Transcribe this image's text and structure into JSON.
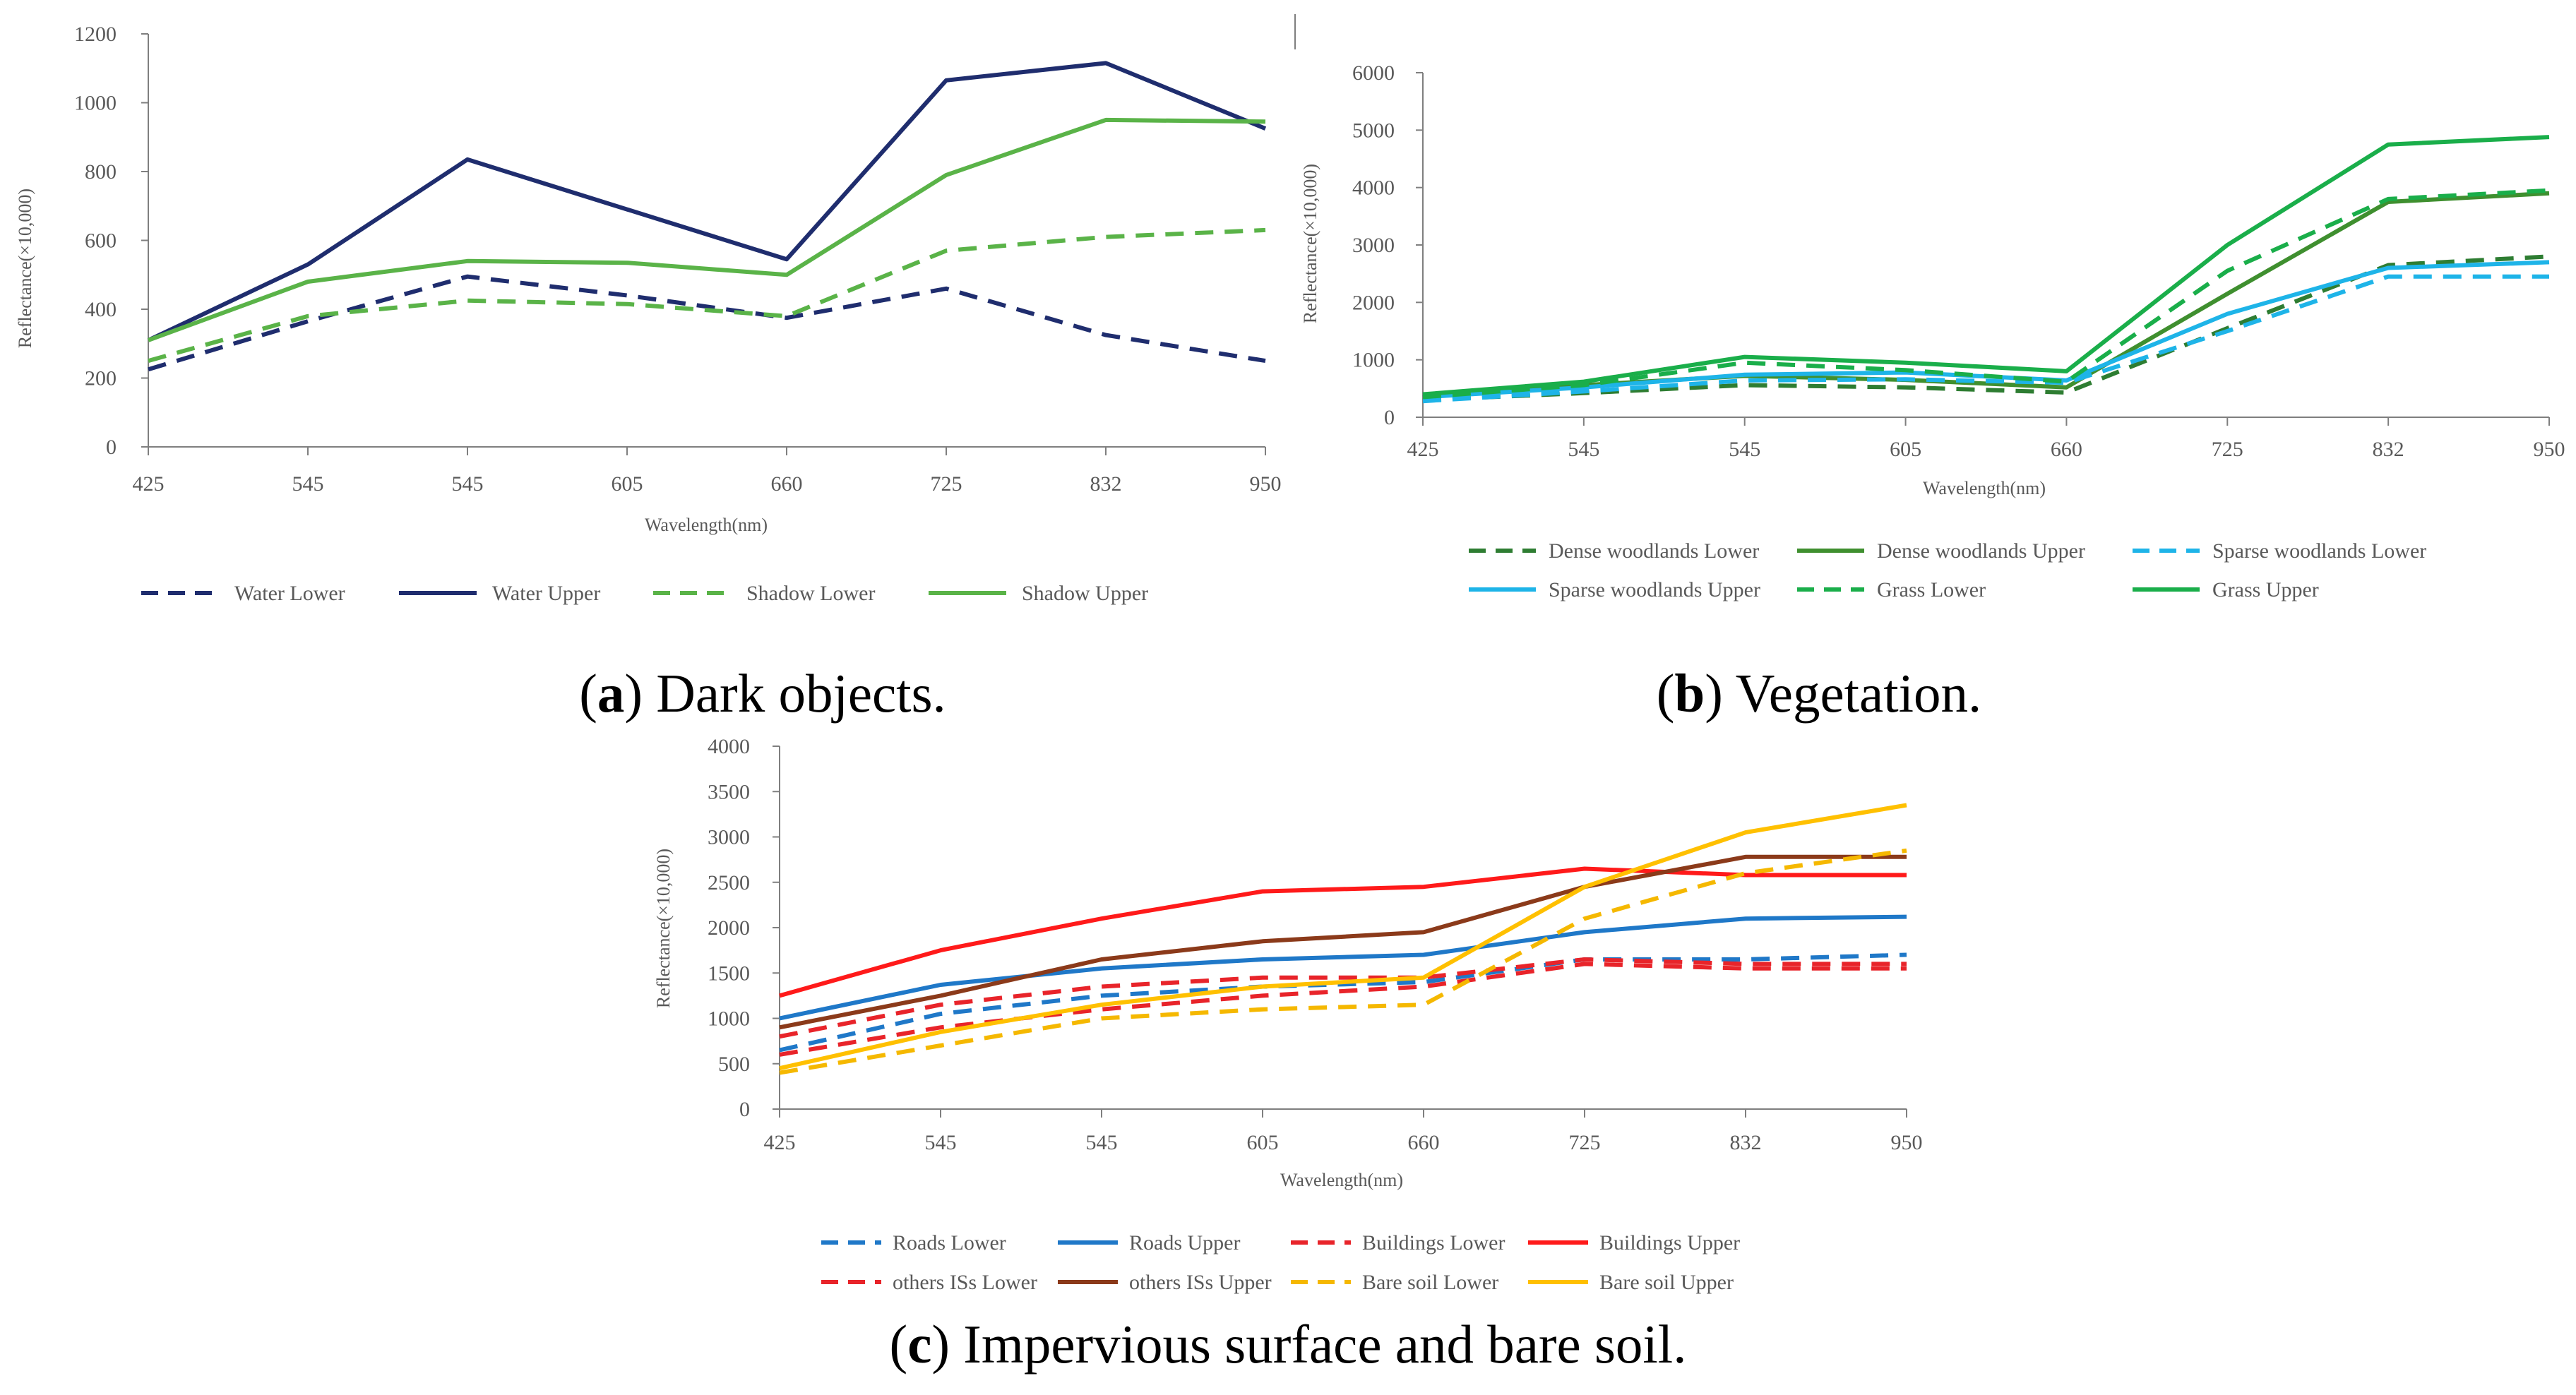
{
  "chart_data": [
    {
      "id": "a",
      "type": "line",
      "title": "",
      "xlabel": "Wavelength(nm)",
      "ylabel": "Reflectance(×10,000)",
      "categories": [
        "425",
        "545",
        "545",
        "605",
        "660",
        "725",
        "832",
        "950"
      ],
      "ylim": [
        0,
        1200
      ],
      "yticks": [
        0,
        200,
        400,
        600,
        800,
        1000,
        1200
      ],
      "caption": {
        "letter": "a",
        "text": "Dark objects."
      },
      "series": [
        {
          "name": "Water Lower",
          "color": "#1f2d6e",
          "dash": true,
          "values": [
            225,
            365,
            495,
            440,
            375,
            460,
            325,
            250
          ]
        },
        {
          "name": "Water Upper",
          "color": "#1f2d6e",
          "dash": false,
          "values": [
            310,
            530,
            835,
            690,
            545,
            1065,
            1115,
            925
          ]
        },
        {
          "name": "Shadow Lower",
          "color": "#5ab348",
          "dash": true,
          "values": [
            250,
            380,
            425,
            415,
            380,
            570,
            610,
            630
          ]
        },
        {
          "name": "Shadow Upper",
          "color": "#5ab348",
          "dash": false,
          "values": [
            310,
            480,
            540,
            535,
            500,
            790,
            950,
            945
          ]
        }
      ]
    },
    {
      "id": "b",
      "type": "line",
      "title": "",
      "xlabel": "Wavelength(nm)",
      "ylabel": "Reflectance(×10,000)",
      "categories": [
        "425",
        "545",
        "545",
        "605",
        "660",
        "725",
        "832",
        "950"
      ],
      "ylim": [
        0,
        6000
      ],
      "yticks": [
        0,
        1000,
        2000,
        3000,
        4000,
        5000,
        6000
      ],
      "caption": {
        "letter": "b",
        "text": "Vegetation."
      },
      "series": [
        {
          "name": "Dense woodlands Lower",
          "color": "#2e7d32",
          "dash": true,
          "values": [
            300,
            420,
            560,
            520,
            430,
            1550,
            2650,
            2800
          ]
        },
        {
          "name": "Dense woodlands Upper",
          "color": "#3f8f2f",
          "dash": false,
          "values": [
            350,
            560,
            720,
            650,
            520,
            2150,
            3750,
            3900
          ]
        },
        {
          "name": "Sparse woodlands Lower",
          "color": "#1eb4e8",
          "dash": true,
          "values": [
            280,
            450,
            640,
            660,
            600,
            1500,
            2450,
            2450
          ]
        },
        {
          "name": "Sparse woodlands Upper",
          "color": "#1eb4e8",
          "dash": false,
          "values": [
            350,
            520,
            740,
            780,
            640,
            1800,
            2600,
            2700
          ]
        },
        {
          "name": "Grass Lower",
          "color": "#1aae4a",
          "dash": true,
          "values": [
            350,
            560,
            950,
            820,
            620,
            2550,
            3800,
            3950
          ]
        },
        {
          "name": "Grass Upper",
          "color": "#1aae4a",
          "dash": false,
          "values": [
            400,
            620,
            1050,
            950,
            800,
            3000,
            4750,
            4880
          ]
        }
      ]
    },
    {
      "id": "c",
      "type": "line",
      "title": "",
      "xlabel": "Wavelength(nm)",
      "ylabel": "Reflectance(×10,000)",
      "categories": [
        "425",
        "545",
        "545",
        "605",
        "660",
        "725",
        "832",
        "950"
      ],
      "ylim": [
        0,
        4000
      ],
      "yticks": [
        0,
        500,
        1000,
        1500,
        2000,
        2500,
        3000,
        3500,
        4000
      ],
      "caption": {
        "letter": "c",
        "text": "Impervious surface and bare soil."
      },
      "series": [
        {
          "name": "Roads Lower",
          "color": "#1f78c8",
          "dash": true,
          "values": [
            650,
            1050,
            1250,
            1350,
            1400,
            1650,
            1650,
            1700
          ]
        },
        {
          "name": "Roads Upper",
          "color": "#1f78c8",
          "dash": false,
          "values": [
            1000,
            1370,
            1550,
            1650,
            1700,
            1950,
            2100,
            2120
          ]
        },
        {
          "name": "Buildings Lower",
          "color": "#e8242a",
          "dash": true,
          "values": [
            800,
            1150,
            1350,
            1450,
            1450,
            1650,
            1600,
            1600
          ]
        },
        {
          "name": "Buildings Upper",
          "color": "#ff1a1a",
          "dash": false,
          "values": [
            1250,
            1750,
            2100,
            2400,
            2450,
            2650,
            2580,
            2580
          ]
        },
        {
          "name": "others ISs Lower",
          "color": "#e8242a",
          "dash": true,
          "values": [
            600,
            900,
            1100,
            1250,
            1350,
            1600,
            1550,
            1550
          ]
        },
        {
          "name": "others ISs Upper",
          "color": "#8b3a1a",
          "dash": false,
          "values": [
            900,
            1250,
            1650,
            1850,
            1950,
            2450,
            2780,
            2780
          ]
        },
        {
          "name": "Bare soil Lower",
          "color": "#f5b800",
          "dash": true,
          "values": [
            400,
            700,
            1000,
            1100,
            1150,
            2100,
            2600,
            2850
          ]
        },
        {
          "name": "Bare soil Upper",
          "color": "#ffc000",
          "dash": false,
          "values": [
            450,
            850,
            1150,
            1350,
            1450,
            2450,
            3050,
            3350
          ]
        }
      ]
    }
  ]
}
